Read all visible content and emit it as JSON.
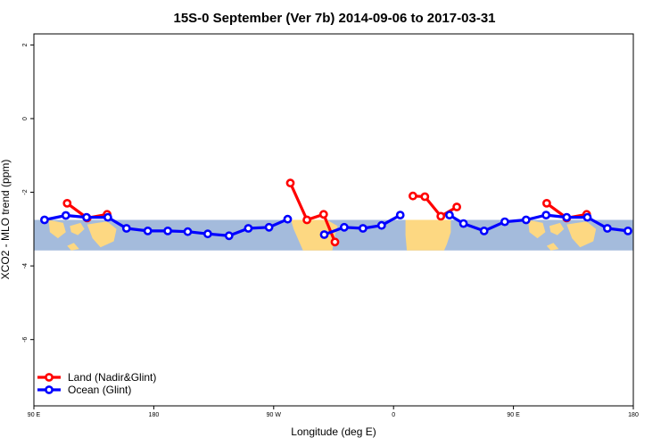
{
  "chart_data": {
    "type": "line",
    "title": "15S-0 September (Ver 7b)   2014-09-06 to 2017-03-31",
    "xlabel": "Longitude (deg E)",
    "ylabel": "XCO2 - MLO trend (ppm)",
    "xlim": [
      90,
      540
    ],
    "ylim": [
      -7.8,
      2.3
    ],
    "x_ticks": [
      {
        "value": 90,
        "label": "90 E"
      },
      {
        "value": 180,
        "label": "180"
      },
      {
        "value": 270,
        "label": "90 W"
      },
      {
        "value": 360,
        "label": "0"
      },
      {
        "value": 450,
        "label": "90 E"
      },
      {
        "value": 540,
        "label": "180"
      }
    ],
    "y_ticks": [
      {
        "value": 2,
        "label": "2"
      },
      {
        "value": 0,
        "label": "0"
      },
      {
        "value": -2,
        "label": "-2"
      },
      {
        "value": -4,
        "label": "-4"
      },
      {
        "value": -6,
        "label": "-6"
      }
    ],
    "latitude_band_y": [
      -2.75,
      -3.58
    ],
    "colors": {
      "land": "#ff0000",
      "ocean": "#0000ff",
      "band_ocean": "#a4bbdc",
      "band_land": "#fdd882",
      "frame": "#000000"
    },
    "legend": {
      "position": "bottom-left",
      "items": [
        {
          "label": "Land (Nadir&Glint)",
          "color": "#ff0000"
        },
        {
          "label": "Ocean (Glint)",
          "color": "#0000ff"
        }
      ]
    },
    "series": [
      {
        "name": "Land (Nadir&Glint)",
        "color": "#ff0000",
        "segments": [
          [
            [
              115,
              -2.3
            ],
            [
              130,
              -2.7
            ],
            [
              145,
              -2.6
            ]
          ],
          [
            [
              282.5,
              -1.75
            ],
            [
              295,
              -2.75
            ],
            [
              307.5,
              -2.6
            ],
            [
              316,
              -3.35
            ]
          ],
          [
            [
              374.5,
              -2.1
            ],
            [
              383.5,
              -2.12
            ],
            [
              395.5,
              -2.65
            ],
            [
              407.5,
              -2.4
            ]
          ],
          [
            [
              475,
              -2.3
            ],
            [
              490,
              -2.7
            ],
            [
              505,
              -2.6
            ]
          ]
        ]
      },
      {
        "name": "Ocean (Glint)",
        "color": "#0000ff",
        "segments": [
          [
            [
              98,
              -2.75
            ],
            [
              114,
              -2.63
            ],
            [
              129.5,
              -2.68
            ],
            [
              145.5,
              -2.68
            ],
            [
              159.5,
              -2.98
            ],
            [
              175.5,
              -3.05
            ],
            [
              190.5,
              -3.05
            ],
            [
              205.5,
              -3.07
            ],
            [
              220.5,
              -3.13
            ],
            [
              236.5,
              -3.18
            ],
            [
              251,
              -2.98
            ],
            [
              266.5,
              -2.95
            ],
            [
              280.5,
              -2.73
            ]
          ],
          [
            [
              308,
              -3.15
            ],
            [
              323,
              -2.95
            ],
            [
              337,
              -2.98
            ],
            [
              351,
              -2.9
            ],
            [
              365,
              -2.62
            ]
          ],
          [
            [
              402,
              -2.62
            ],
            [
              412.5,
              -2.85
            ],
            [
              428,
              -3.05
            ],
            [
              443.5,
              -2.8
            ],
            [
              459.5,
              -2.75
            ],
            [
              474.5,
              -2.62
            ],
            [
              490,
              -2.68
            ],
            [
              505.5,
              -2.68
            ],
            [
              520.5,
              -2.98
            ],
            [
              536,
              -3.05
            ]
          ]
        ]
      }
    ]
  }
}
